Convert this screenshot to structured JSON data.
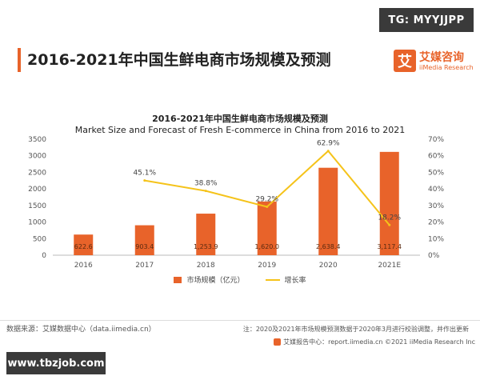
{
  "header": {
    "tag": "TG: MYYJJPP",
    "title": "2016-2021年中国生鲜电商市场规模及预测",
    "logo_mark": "艾",
    "logo_cn": "艾媒咨询",
    "logo_en": "iiMedia Research"
  },
  "chart_data": {
    "type": "bar",
    "title": "2016-2021年中国生鲜电商市场规模及预测",
    "subtitle": "Market Size and Forecast of Fresh E-commerce in China from 2016 to 2021",
    "categories": [
      "2016",
      "2017",
      "2018",
      "2019",
      "2020",
      "2021E"
    ],
    "series": [
      {
        "name": "市场规模（亿元）",
        "type": "bar",
        "axis": "left",
        "color": "#e8632a",
        "values": [
          622.6,
          903.4,
          1253.9,
          1620.0,
          2638.4,
          3117.4
        ],
        "labels": [
          "622.6",
          "903.4",
          "1,253.9",
          "1,620.0",
          "2,638.4",
          "3,117.4"
        ]
      },
      {
        "name": "增长率",
        "type": "line",
        "axis": "right",
        "color": "#f5c31a",
        "values": [
          null,
          45.1,
          38.8,
          29.2,
          62.9,
          18.2
        ],
        "labels": [
          "",
          "45.1%",
          "38.8%",
          "29.2%",
          "62.9%",
          "18.2%"
        ]
      }
    ],
    "y_left": {
      "min": 0,
      "max": 3500,
      "ticks": [
        "0",
        "500",
        "1000",
        "1500",
        "2000",
        "2500",
        "3000",
        "3500"
      ]
    },
    "y_right": {
      "min": 0,
      "max": 70,
      "ticks": [
        "0%",
        "10%",
        "20%",
        "30%",
        "40%",
        "50%",
        "60%",
        "70%"
      ]
    },
    "grid": false,
    "legend": "bottom"
  },
  "footer": {
    "source": "数据来源：艾媒数据中心（data.iimedia.cn）",
    "note": "注：2020及2021年市场规模预测数据于2020年3月进行校验调整，并作出更新",
    "copyright": "艾媒报告中心：report.iimedia.cn   ©2021  iiMedia Research  Inc"
  },
  "watermark": "www.tbzjob.com"
}
